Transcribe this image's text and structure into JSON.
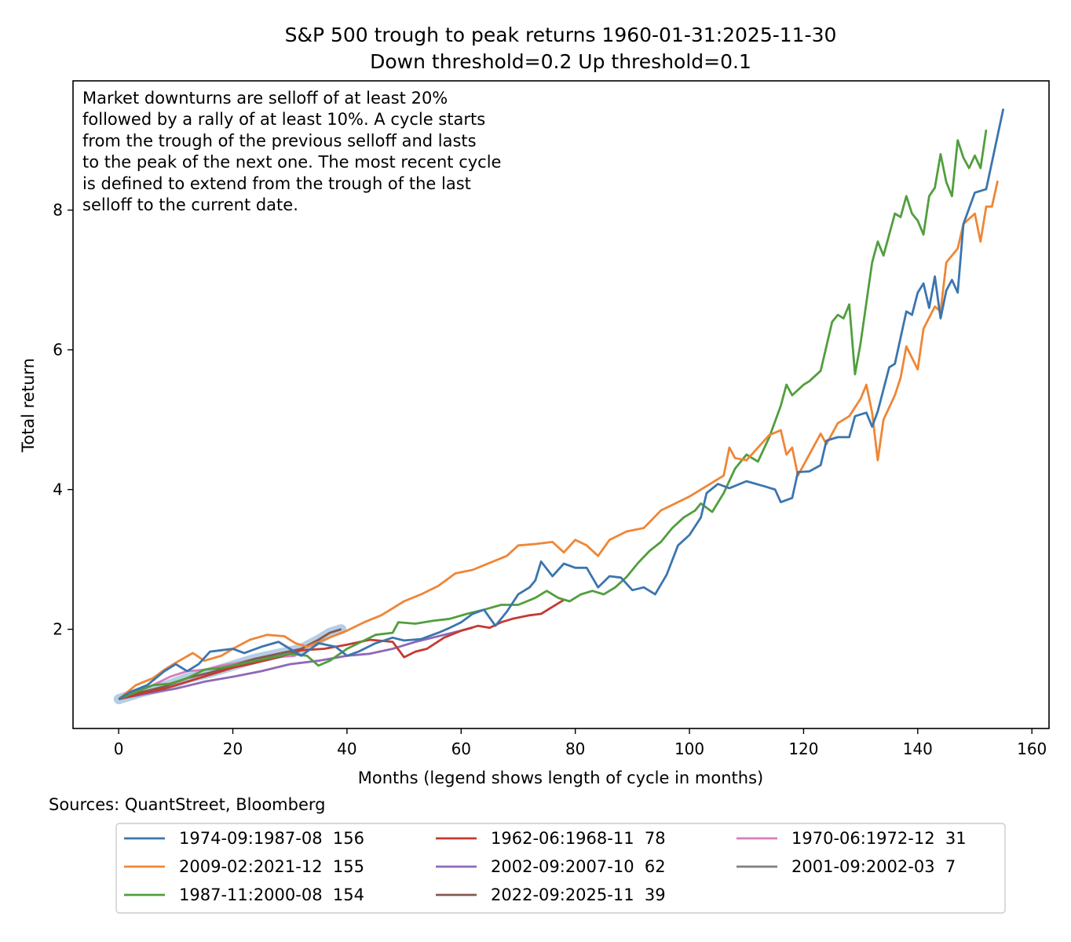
{
  "chart_data": {
    "type": "line",
    "title": "S&P 500 trough to peak returns 1960-01-31:2025-11-30",
    "subtitle": "Down threshold=0.2  Up threshold=0.1",
    "xlabel": "Months (legend shows length of cycle in months)",
    "ylabel": "Total return",
    "xlim": [
      -8,
      163
    ],
    "ylim": [
      0.58,
      9.85
    ],
    "xticks": [
      0,
      20,
      40,
      60,
      80,
      100,
      120,
      140,
      160
    ],
    "yticks": [
      2,
      4,
      6,
      8
    ],
    "grid": false,
    "legend_placement": "bottom-outside",
    "annotation": [
      "Market downturns are selloff of at least 20%",
      "followed by a rally of at least 10%. A cycle starts",
      "from the trough of the previous selloff and lasts",
      "to the peak of the next one. The most recent cycle",
      "is defined to extend from the trough of the last",
      "selloff to the current date."
    ],
    "source": "Sources: QuantStreet, Bloomberg",
    "series": [
      {
        "name": "1974-09:1987-08",
        "length": "156",
        "color": "#3b75af",
        "points": [
          [
            0,
            1.0
          ],
          [
            2,
            1.1
          ],
          [
            5,
            1.2
          ],
          [
            8,
            1.4
          ],
          [
            10,
            1.5
          ],
          [
            12,
            1.4
          ],
          [
            14,
            1.5
          ],
          [
            16,
            1.68
          ],
          [
            18,
            1.7
          ],
          [
            20,
            1.72
          ],
          [
            22,
            1.66
          ],
          [
            25,
            1.75
          ],
          [
            28,
            1.82
          ],
          [
            30,
            1.72
          ],
          [
            32,
            1.62
          ],
          [
            35,
            1.8
          ],
          [
            38,
            1.75
          ],
          [
            40,
            1.62
          ],
          [
            42,
            1.68
          ],
          [
            45,
            1.8
          ],
          [
            48,
            1.88
          ],
          [
            50,
            1.84
          ],
          [
            53,
            1.86
          ],
          [
            56,
            1.95
          ],
          [
            58,
            2.02
          ],
          [
            60,
            2.1
          ],
          [
            62,
            2.22
          ],
          [
            64,
            2.28
          ],
          [
            66,
            2.05
          ],
          [
            68,
            2.25
          ],
          [
            70,
            2.5
          ],
          [
            72,
            2.6
          ],
          [
            73,
            2.7
          ],
          [
            74,
            2.97
          ],
          [
            76,
            2.76
          ],
          [
            78,
            2.94
          ],
          [
            80,
            2.88
          ],
          [
            82,
            2.88
          ],
          [
            84,
            2.6
          ],
          [
            86,
            2.76
          ],
          [
            88,
            2.74
          ],
          [
            90,
            2.56
          ],
          [
            92,
            2.6
          ],
          [
            94,
            2.5
          ],
          [
            96,
            2.78
          ],
          [
            98,
            3.2
          ],
          [
            100,
            3.35
          ],
          [
            102,
            3.6
          ],
          [
            103,
            3.95
          ],
          [
            105,
            4.08
          ],
          [
            107,
            4.02
          ],
          [
            110,
            4.12
          ],
          [
            113,
            4.05
          ],
          [
            115,
            4.0
          ],
          [
            116,
            3.82
          ],
          [
            118,
            3.88
          ],
          [
            119,
            4.25
          ],
          [
            121,
            4.26
          ],
          [
            123,
            4.35
          ],
          [
            124,
            4.7
          ],
          [
            126,
            4.75
          ],
          [
            128,
            4.75
          ],
          [
            129,
            5.05
          ],
          [
            131,
            5.1
          ],
          [
            132,
            4.9
          ],
          [
            133,
            5.12
          ],
          [
            135,
            5.75
          ],
          [
            136,
            5.8
          ],
          [
            138,
            6.55
          ],
          [
            139,
            6.5
          ],
          [
            140,
            6.82
          ],
          [
            141,
            6.95
          ],
          [
            142,
            6.6
          ],
          [
            143,
            7.05
          ],
          [
            144,
            6.45
          ],
          [
            145,
            6.85
          ],
          [
            146,
            7.0
          ],
          [
            147,
            6.82
          ],
          [
            148,
            7.8
          ],
          [
            150,
            8.25
          ],
          [
            152,
            8.3
          ],
          [
            155,
            9.45
          ]
        ]
      },
      {
        "name": "2009-02:2021-12",
        "length": "155",
        "color": "#ef8636",
        "points": [
          [
            0,
            1.0
          ],
          [
            3,
            1.2
          ],
          [
            6,
            1.3
          ],
          [
            8,
            1.42
          ],
          [
            10,
            1.52
          ],
          [
            13,
            1.66
          ],
          [
            15,
            1.55
          ],
          [
            18,
            1.62
          ],
          [
            20,
            1.72
          ],
          [
            23,
            1.85
          ],
          [
            26,
            1.92
          ],
          [
            29,
            1.9
          ],
          [
            31,
            1.8
          ],
          [
            33,
            1.75
          ],
          [
            36,
            1.85
          ],
          [
            40,
            1.98
          ],
          [
            43,
            2.1
          ],
          [
            46,
            2.2
          ],
          [
            50,
            2.4
          ],
          [
            53,
            2.5
          ],
          [
            56,
            2.62
          ],
          [
            59,
            2.8
          ],
          [
            62,
            2.85
          ],
          [
            65,
            2.95
          ],
          [
            68,
            3.05
          ],
          [
            70,
            3.2
          ],
          [
            73,
            3.22
          ],
          [
            76,
            3.25
          ],
          [
            78,
            3.1
          ],
          [
            80,
            3.28
          ],
          [
            82,
            3.2
          ],
          [
            84,
            3.05
          ],
          [
            86,
            3.28
          ],
          [
            89,
            3.4
          ],
          [
            92,
            3.45
          ],
          [
            95,
            3.7
          ],
          [
            97,
            3.78
          ],
          [
            100,
            3.9
          ],
          [
            103,
            4.05
          ],
          [
            106,
            4.2
          ],
          [
            107,
            4.6
          ],
          [
            108,
            4.45
          ],
          [
            110,
            4.42
          ],
          [
            112,
            4.6
          ],
          [
            114,
            4.78
          ],
          [
            116,
            4.85
          ],
          [
            117,
            4.5
          ],
          [
            118,
            4.6
          ],
          [
            119,
            4.2
          ],
          [
            121,
            4.5
          ],
          [
            123,
            4.8
          ],
          [
            124,
            4.65
          ],
          [
            126,
            4.95
          ],
          [
            128,
            5.05
          ],
          [
            130,
            5.3
          ],
          [
            131,
            5.5
          ],
          [
            132,
            5.1
          ],
          [
            133,
            4.42
          ],
          [
            134,
            5.0
          ],
          [
            136,
            5.35
          ],
          [
            137,
            5.6
          ],
          [
            138,
            6.05
          ],
          [
            140,
            5.72
          ],
          [
            141,
            6.3
          ],
          [
            143,
            6.62
          ],
          [
            144,
            6.55
          ],
          [
            145,
            7.25
          ],
          [
            147,
            7.45
          ],
          [
            148,
            7.8
          ],
          [
            150,
            7.95
          ],
          [
            151,
            7.55
          ],
          [
            152,
            8.05
          ],
          [
            153,
            8.05
          ],
          [
            154,
            8.42
          ]
        ]
      },
      {
        "name": "1987-11:2000-08",
        "length": "154",
        "color": "#519e3e",
        "points": [
          [
            0,
            1.0
          ],
          [
            3,
            1.1
          ],
          [
            6,
            1.2
          ],
          [
            9,
            1.22
          ],
          [
            12,
            1.3
          ],
          [
            15,
            1.42
          ],
          [
            18,
            1.45
          ],
          [
            21,
            1.5
          ],
          [
            24,
            1.55
          ],
          [
            27,
            1.6
          ],
          [
            30,
            1.65
          ],
          [
            33,
            1.62
          ],
          [
            35,
            1.48
          ],
          [
            37,
            1.55
          ],
          [
            40,
            1.72
          ],
          [
            42,
            1.8
          ],
          [
            45,
            1.92
          ],
          [
            48,
            1.95
          ],
          [
            49,
            2.1
          ],
          [
            52,
            2.08
          ],
          [
            55,
            2.12
          ],
          [
            58,
            2.15
          ],
          [
            61,
            2.22
          ],
          [
            64,
            2.28
          ],
          [
            67,
            2.35
          ],
          [
            70,
            2.35
          ],
          [
            73,
            2.45
          ],
          [
            75,
            2.55
          ],
          [
            77,
            2.45
          ],
          [
            79,
            2.4
          ],
          [
            81,
            2.5
          ],
          [
            83,
            2.55
          ],
          [
            85,
            2.5
          ],
          [
            87,
            2.6
          ],
          [
            89,
            2.75
          ],
          [
            91,
            2.95
          ],
          [
            93,
            3.12
          ],
          [
            95,
            3.25
          ],
          [
            97,
            3.45
          ],
          [
            99,
            3.6
          ],
          [
            101,
            3.7
          ],
          [
            102,
            3.8
          ],
          [
            104,
            3.68
          ],
          [
            106,
            3.95
          ],
          [
            108,
            4.3
          ],
          [
            110,
            4.5
          ],
          [
            112,
            4.4
          ],
          [
            114,
            4.75
          ],
          [
            116,
            5.2
          ],
          [
            117,
            5.5
          ],
          [
            118,
            5.35
          ],
          [
            120,
            5.5
          ],
          [
            121,
            5.55
          ],
          [
            123,
            5.7
          ],
          [
            124,
            6.05
          ],
          [
            125,
            6.4
          ],
          [
            126,
            6.5
          ],
          [
            127,
            6.45
          ],
          [
            128,
            6.65
          ],
          [
            129,
            5.65
          ],
          [
            130,
            6.1
          ],
          [
            132,
            7.25
          ],
          [
            133,
            7.55
          ],
          [
            134,
            7.35
          ],
          [
            136,
            7.95
          ],
          [
            137,
            7.9
          ],
          [
            138,
            8.2
          ],
          [
            139,
            7.95
          ],
          [
            140,
            7.85
          ],
          [
            141,
            7.65
          ],
          [
            142,
            8.2
          ],
          [
            143,
            8.32
          ],
          [
            144,
            8.8
          ],
          [
            145,
            8.4
          ],
          [
            146,
            8.2
          ],
          [
            147,
            9.0
          ],
          [
            148,
            8.75
          ],
          [
            149,
            8.6
          ],
          [
            150,
            8.78
          ],
          [
            151,
            8.6
          ],
          [
            152,
            9.15
          ]
        ]
      },
      {
        "name": "1962-06:1968-11",
        "length": "78",
        "color": "#c53932",
        "points": [
          [
            0,
            1.0
          ],
          [
            4,
            1.08
          ],
          [
            8,
            1.15
          ],
          [
            12,
            1.25
          ],
          [
            16,
            1.35
          ],
          [
            20,
            1.45
          ],
          [
            24,
            1.52
          ],
          [
            28,
            1.6
          ],
          [
            32,
            1.7
          ],
          [
            36,
            1.72
          ],
          [
            40,
            1.78
          ],
          [
            44,
            1.85
          ],
          [
            48,
            1.82
          ],
          [
            50,
            1.6
          ],
          [
            52,
            1.68
          ],
          [
            54,
            1.72
          ],
          [
            57,
            1.88
          ],
          [
            60,
            1.98
          ],
          [
            63,
            2.05
          ],
          [
            65,
            2.02
          ],
          [
            67,
            2.1
          ],
          [
            69,
            2.15
          ],
          [
            72,
            2.2
          ],
          [
            74,
            2.22
          ],
          [
            76,
            2.32
          ],
          [
            78,
            2.42
          ]
        ]
      },
      {
        "name": "2002-09:2007-10",
        "length": "62",
        "color": "#8d69b8",
        "points": [
          [
            0,
            1.0
          ],
          [
            5,
            1.08
          ],
          [
            10,
            1.15
          ],
          [
            15,
            1.25
          ],
          [
            20,
            1.32
          ],
          [
            25,
            1.4
          ],
          [
            30,
            1.5
          ],
          [
            35,
            1.55
          ],
          [
            40,
            1.62
          ],
          [
            44,
            1.65
          ],
          [
            48,
            1.72
          ],
          [
            52,
            1.82
          ],
          [
            56,
            1.9
          ],
          [
            60,
            1.98
          ],
          [
            62,
            2.02
          ]
        ]
      },
      {
        "name": "2022-09:2025-11",
        "length": "39",
        "color": "#84584e",
        "points": [
          [
            0,
            1.0
          ],
          [
            4,
            1.1
          ],
          [
            8,
            1.18
          ],
          [
            12,
            1.3
          ],
          [
            16,
            1.38
          ],
          [
            20,
            1.48
          ],
          [
            24,
            1.58
          ],
          [
            28,
            1.65
          ],
          [
            32,
            1.72
          ],
          [
            35,
            1.85
          ],
          [
            37,
            1.95
          ],
          [
            39,
            2.0
          ]
        ]
      },
      {
        "name": "1970-06:1972-12",
        "length": "31",
        "color": "#d57dbe",
        "points": [
          [
            0,
            1.0
          ],
          [
            3,
            1.1
          ],
          [
            6,
            1.2
          ],
          [
            9,
            1.32
          ],
          [
            12,
            1.4
          ],
          [
            15,
            1.42
          ],
          [
            18,
            1.48
          ],
          [
            21,
            1.52
          ],
          [
            24,
            1.58
          ],
          [
            27,
            1.6
          ],
          [
            31,
            1.62
          ]
        ]
      },
      {
        "name": "2001-09:2002-03",
        "length": "7",
        "color": "#7f7f7f",
        "points": [
          [
            0,
            1.0
          ],
          [
            2,
            1.05
          ],
          [
            4,
            1.1
          ],
          [
            5,
            1.08
          ],
          [
            7,
            1.12
          ]
        ]
      }
    ]
  }
}
